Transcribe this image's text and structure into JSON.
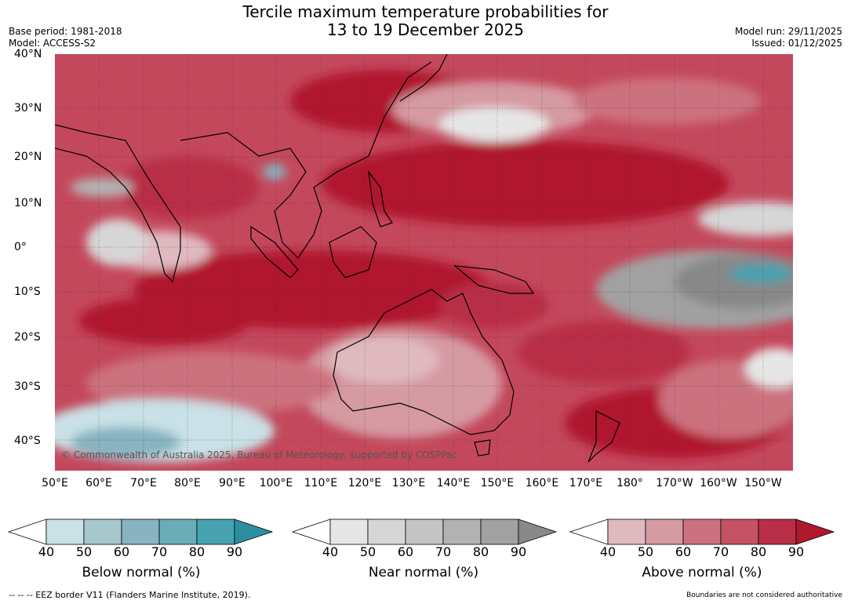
{
  "title_line1": "Tercile maximum temperature probabilities for",
  "title_line2": "13 to 19 December 2025",
  "base_period": "Base period: 1981-2018",
  "model": "Model: ACCESS-S2",
  "model_run": "Model run: 29/11/2025",
  "issued": "Issued: 01/12/2025",
  "credit": "© Commonwealth of Australia 2025, Bureau of Meteorology, supported by COSPPac",
  "lat_labels": [
    "40°N",
    "30°N",
    "20°N",
    "10°N",
    "0°",
    "10°S",
    "20°S",
    "30°S",
    "40°S"
  ],
  "lon_labels": [
    "50°E",
    "60°E",
    "70°E",
    "80°E",
    "90°E",
    "100°E",
    "110°E",
    "120°E",
    "130°E",
    "140°E",
    "150°E",
    "160°E",
    "170°E",
    "180°",
    "170°W",
    "160°W",
    "150°W"
  ],
  "colorbars": [
    {
      "label": "Below normal (%)",
      "ticks": [
        "40",
        "50",
        "60",
        "70",
        "80",
        "90"
      ],
      "colors": [
        "#c9e1e7",
        "#a6c7cc",
        "#88b3c0",
        "#6aadb8",
        "#47a2b0",
        "#2b8fa0"
      ]
    },
    {
      "label": "Near normal (%)",
      "ticks": [
        "40",
        "50",
        "60",
        "70",
        "80",
        "90"
      ],
      "colors": [
        "#e6e6e6",
        "#d6d6d6",
        "#c4c4c4",
        "#b2b2b2",
        "#a1a1a1",
        "#888888"
      ]
    },
    {
      "label": "Above normal (%)",
      "ticks": [
        "40",
        "50",
        "60",
        "70",
        "80",
        "90"
      ],
      "colors": [
        "#e0b9c0",
        "#d59aa2",
        "#cc727f",
        "#c45264",
        "#b92e47",
        "#b0182e"
      ]
    }
  ],
  "footer_left": "--  --  -- EEZ border V11 (Flanders Marine Institute, 2019).",
  "footer_right": "Boundaries are not considered authoritative"
}
